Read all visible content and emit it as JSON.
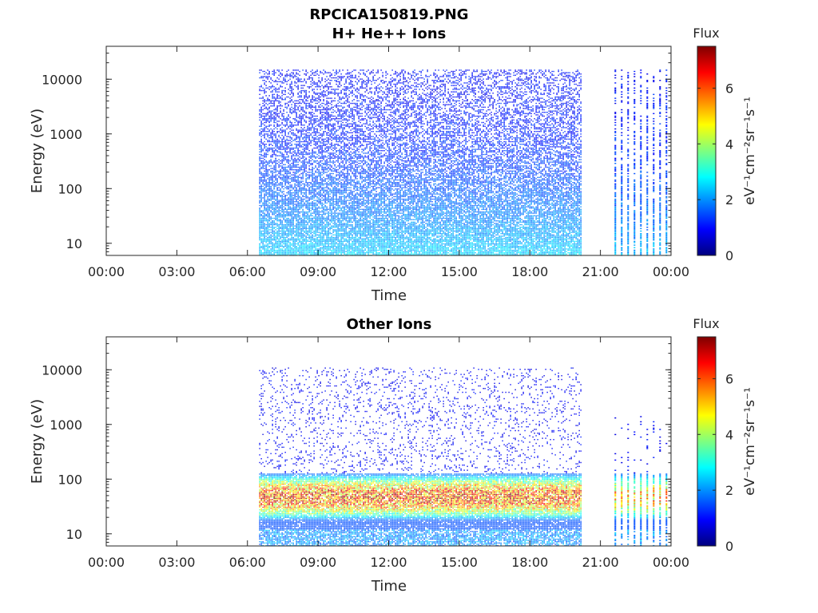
{
  "figure_title": "RPCICA150819.PNG",
  "colors": {
    "colormap": [
      "#00007f",
      "#0000ff",
      "#007fff",
      "#00ffff",
      "#7fff7f",
      "#ffff00",
      "#ff7f00",
      "#ff0000",
      "#7f0000"
    ],
    "axes": "#262626",
    "background": "#ffffff"
  },
  "chart_data": [
    {
      "type": "heatmap",
      "title": "H+ He++ Ions",
      "xlabel": "Time",
      "ylabel": "Energy (eV)",
      "x_ticks": [
        "00:00",
        "03:00",
        "06:00",
        "09:00",
        "12:00",
        "15:00",
        "18:00",
        "21:00",
        "00:00"
      ],
      "x_range_hours": [
        0,
        24
      ],
      "y_ticks": [
        "10",
        "100",
        "1000",
        "10000"
      ],
      "y_scale": "log",
      "y_range": [
        6,
        40000
      ],
      "colorbar": {
        "label": "Flux",
        "units": "eV⁻¹cm⁻²sr⁻¹s⁻¹",
        "ticks": [
          "0",
          "2",
          "4",
          "6"
        ],
        "range": [
          0,
          7.5
        ]
      },
      "data_segments": [
        {
          "start_hour": 6.5,
          "end_hour": 20.2,
          "pattern": "continuous",
          "max_energy": 15000,
          "flux_high_energy": 1.0,
          "flux_low_energy": 2.5
        },
        {
          "start_hour": 21.6,
          "end_hour": 23.9,
          "pattern": "intermittent",
          "max_energy": 15000,
          "flux_high_energy": 1.0,
          "flux_low_energy": 2.3
        }
      ]
    },
    {
      "type": "heatmap",
      "title": "Other Ions",
      "xlabel": "Time",
      "ylabel": "Energy (eV)",
      "x_ticks": [
        "00:00",
        "03:00",
        "06:00",
        "09:00",
        "12:00",
        "15:00",
        "18:00",
        "21:00",
        "00:00"
      ],
      "x_range_hours": [
        0,
        24
      ],
      "y_ticks": [
        "10",
        "100",
        "1000",
        "10000"
      ],
      "y_scale": "log",
      "y_range": [
        6,
        40000
      ],
      "colorbar": {
        "label": "Flux",
        "units": "eV⁻¹cm⁻²sr⁻¹s⁻¹",
        "ticks": [
          "0",
          "2",
          "4",
          "6"
        ],
        "range": [
          0,
          7.5
        ]
      },
      "data_segments": [
        {
          "start_hour": 6.5,
          "end_hour": 20.2,
          "pattern": "continuous",
          "max_energy": 11000,
          "band_energy": [
            12,
            130
          ],
          "band_peak_flux": 5.5
        },
        {
          "start_hour": 21.6,
          "end_hour": 23.9,
          "pattern": "intermittent",
          "max_energy": 1500,
          "band_energy": [
            12,
            130
          ],
          "band_peak_flux": 4.5
        }
      ]
    }
  ]
}
